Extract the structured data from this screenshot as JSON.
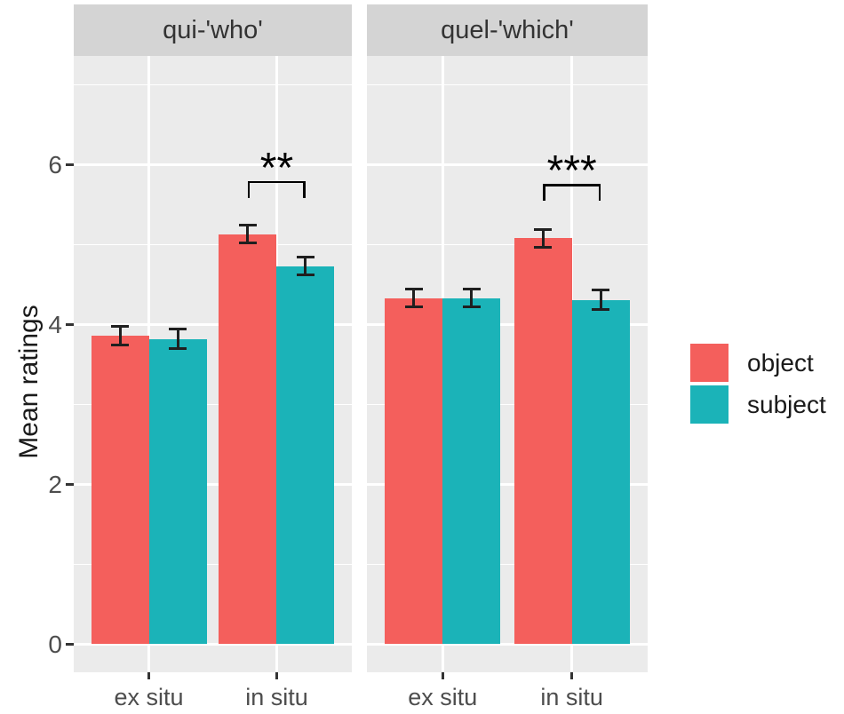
{
  "chart_data": {
    "type": "bar",
    "title": "",
    "xlabel": "",
    "ylabel": "Mean ratings",
    "ylim": [
      0,
      7.35
    ],
    "yticks": [
      0,
      2,
      4,
      6
    ],
    "yticks_minor": [
      1,
      3,
      5,
      7
    ],
    "grid": "white gridlines on gray panel",
    "legend_position": "right",
    "categories": [
      "ex situ",
      "in situ"
    ],
    "facets": [
      {
        "label": "qui-'who'",
        "series": [
          {
            "name": "object",
            "color": "#F45F5C",
            "values": [
              3.86,
              5.13
            ],
            "errors": [
              0.12,
              0.11
            ]
          },
          {
            "name": "subject",
            "color": "#1BB3B8",
            "values": [
              3.82,
              4.73
            ],
            "errors": [
              0.12,
              0.11
            ]
          }
        ],
        "significance": {
          "label": "**",
          "category_index": 1,
          "bracket_y": 5.8
        }
      },
      {
        "label": "quel-'which'",
        "series": [
          {
            "name": "object",
            "color": "#F45F5C",
            "values": [
              4.33,
              5.08
            ],
            "errors": [
              0.11,
              0.11
            ]
          },
          {
            "name": "subject",
            "color": "#1BB3B8",
            "values": [
              4.33,
              4.31
            ],
            "errors": [
              0.11,
              0.12
            ]
          }
        ],
        "significance": {
          "label": "***",
          "category_index": 1,
          "bracket_y": 5.76
        }
      }
    ],
    "legend": [
      {
        "label": "object",
        "color": "#F45F5C"
      },
      {
        "label": "subject",
        "color": "#1BB3B8"
      }
    ]
  },
  "colors": {
    "object": "#F45F5C",
    "subject": "#1BB3B8",
    "panel_background": "#EBEBEB",
    "strip_background": "#D4D4D4",
    "gridline": "#FFFFFF",
    "axis_text": "#4D4D4D",
    "text": "#1A1A1A"
  }
}
